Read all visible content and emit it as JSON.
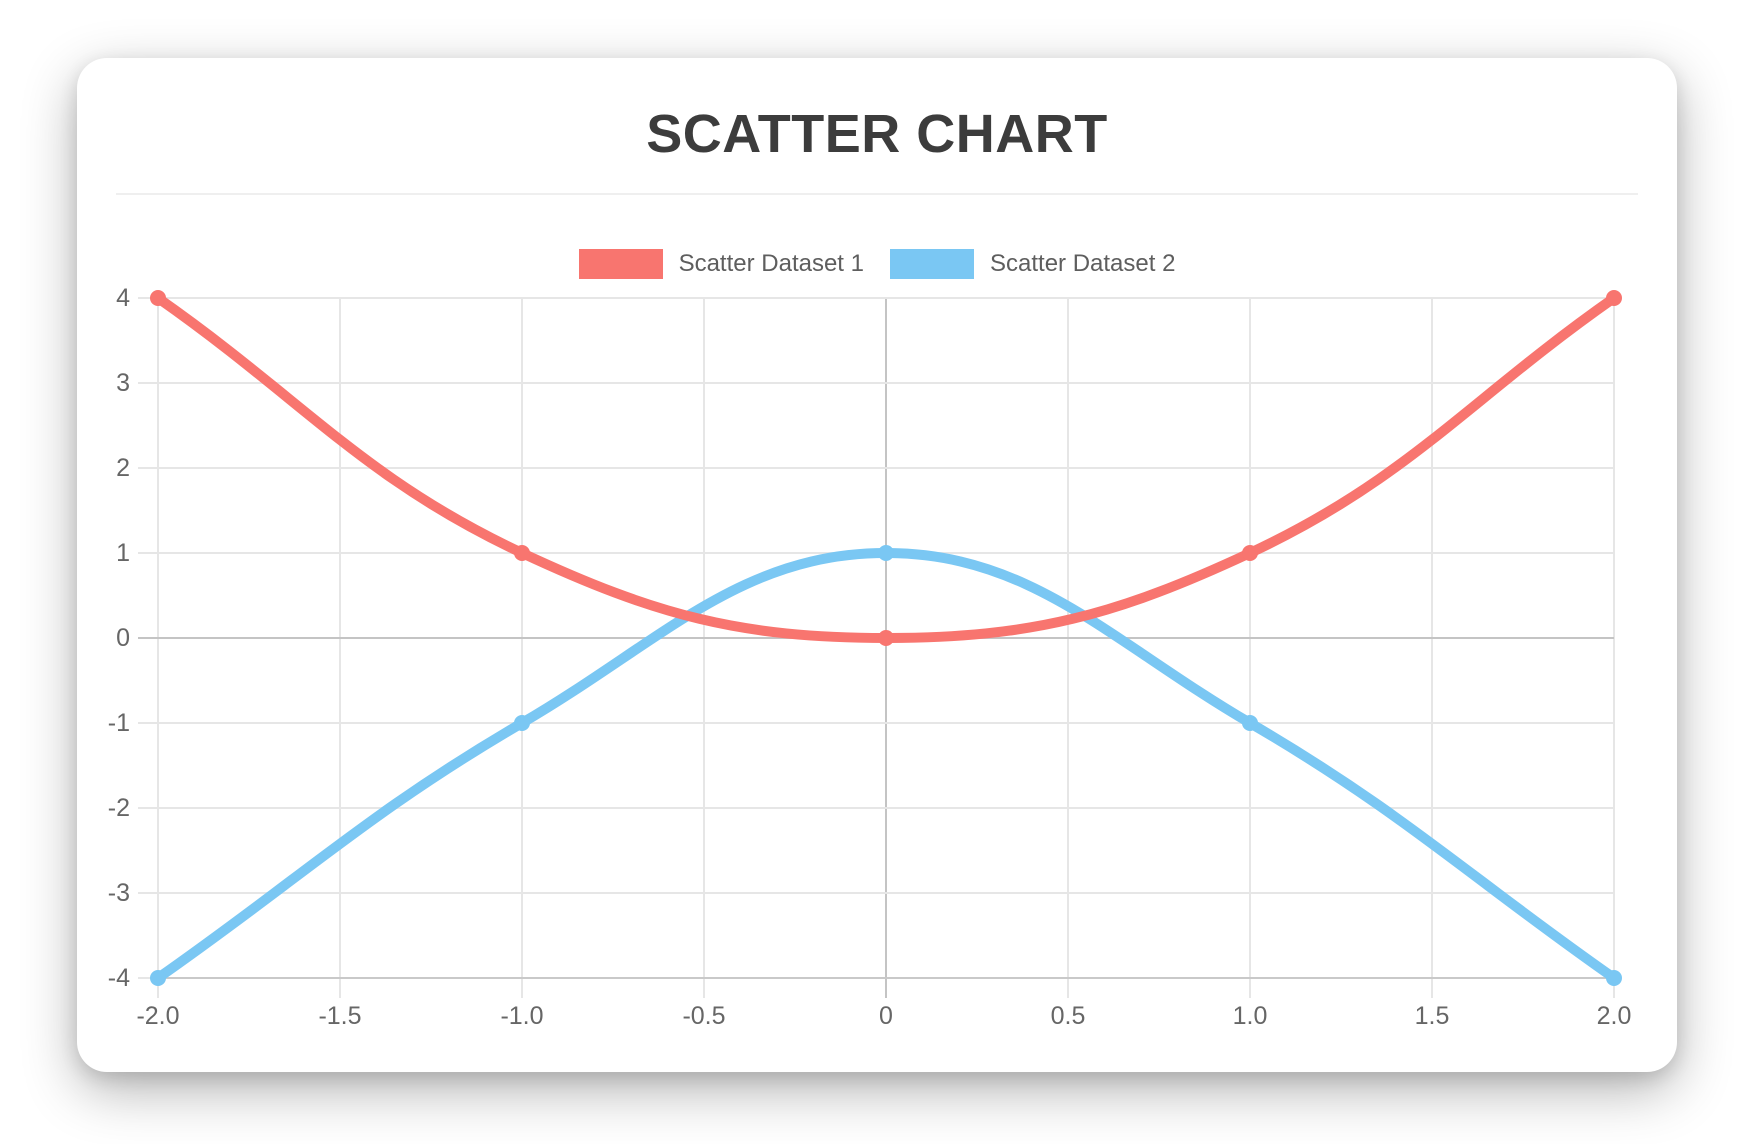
{
  "chart_data": {
    "type": "scatter",
    "title": "SCATTER CHART",
    "legend_position": "top",
    "grid": true,
    "x_axis": {
      "min": -2,
      "max": 2,
      "ticks": [
        {
          "value": -2,
          "label": "-2.0"
        },
        {
          "value": -1.5,
          "label": "-1.5"
        },
        {
          "value": -1,
          "label": "-1.0"
        },
        {
          "value": -0.5,
          "label": "-0.5"
        },
        {
          "value": 0,
          "label": "0"
        },
        {
          "value": 0.5,
          "label": "0.5"
        },
        {
          "value": 1,
          "label": "1.0"
        },
        {
          "value": 1.5,
          "label": "1.5"
        },
        {
          "value": 2,
          "label": "2.0"
        }
      ]
    },
    "y_axis": {
      "min": -4,
      "max": 4,
      "ticks": [
        {
          "value": 4,
          "label": "4"
        },
        {
          "value": 3,
          "label": "3"
        },
        {
          "value": 2,
          "label": "2"
        },
        {
          "value": 1,
          "label": "1"
        },
        {
          "value": 0,
          "label": "0"
        },
        {
          "value": -1,
          "label": "-1"
        },
        {
          "value": -2,
          "label": "-2"
        },
        {
          "value": -3,
          "label": "-3"
        },
        {
          "value": -4,
          "label": "-4"
        }
      ]
    },
    "series": [
      {
        "name": "Scatter Dataset 1",
        "color": "#F8756F",
        "line_tension": 0.4,
        "points": [
          [
            -2,
            4
          ],
          [
            -1,
            1
          ],
          [
            0,
            0
          ],
          [
            1,
            1
          ],
          [
            2,
            4
          ]
        ]
      },
      {
        "name": "Scatter Dataset 2",
        "color": "#7AC7F3",
        "line_tension": 0.4,
        "points": [
          [
            -2,
            -4
          ],
          [
            -1,
            -1
          ],
          [
            0,
            1
          ],
          [
            1,
            -1
          ],
          [
            2,
            -4
          ]
        ]
      }
    ],
    "colors": {
      "grid": "#E6E6E6",
      "zero_line": "#C4C4C4",
      "axis_line": "#C9C9C9",
      "tick_text": "#666666",
      "title_text": "#3C3C3C",
      "legend_text": "#5E5E5E",
      "divider": "#EFEFEF"
    }
  }
}
